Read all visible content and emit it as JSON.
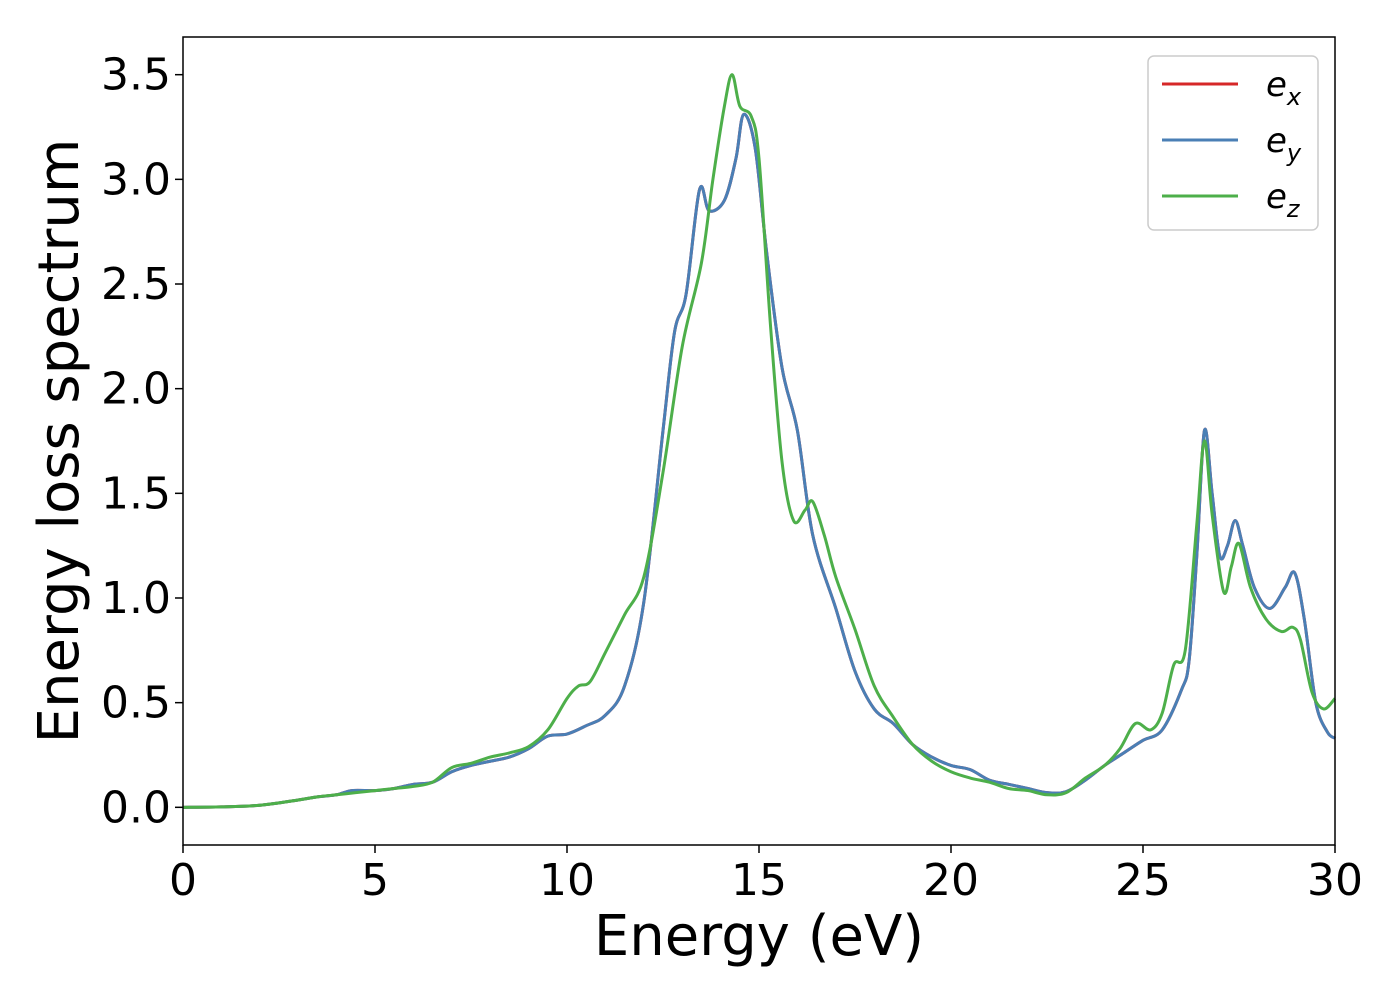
{
  "chart_data": {
    "type": "line",
    "xlabel": "Energy (eV)",
    "ylabel": "Energy loss spectrum",
    "xlim": [
      0,
      30
    ],
    "ylim": [
      -0.18,
      3.68
    ],
    "xticks": [
      0,
      5,
      10,
      15,
      20,
      25,
      30
    ],
    "yticks": [
      0.0,
      0.5,
      1.0,
      1.5,
      2.0,
      2.5,
      3.0,
      3.5
    ],
    "xtick_labels": [
      "0",
      "5",
      "10",
      "15",
      "20",
      "25",
      "30"
    ],
    "ytick_labels": [
      "0.0",
      "0.5",
      "1.0",
      "1.5",
      "2.0",
      "2.5",
      "3.0",
      "3.5"
    ],
    "grid": false,
    "legend_position": "top-right",
    "series": [
      {
        "name": "e",
        "subscript": "x",
        "color": "#d62728",
        "points": [
          [
            0,
            0
          ],
          [
            1,
            0.002
          ],
          [
            2,
            0.01
          ],
          [
            3,
            0.035
          ],
          [
            3.5,
            0.05
          ],
          [
            4,
            0.06
          ],
          [
            4.4,
            0.08
          ],
          [
            5,
            0.08
          ],
          [
            5.5,
            0.09
          ],
          [
            6,
            0.11
          ],
          [
            6.5,
            0.12
          ],
          [
            7,
            0.17
          ],
          [
            7.5,
            0.2
          ],
          [
            8,
            0.22
          ],
          [
            8.5,
            0.24
          ],
          [
            9,
            0.28
          ],
          [
            9.5,
            0.34
          ],
          [
            10,
            0.35
          ],
          [
            10.5,
            0.39
          ],
          [
            11,
            0.44
          ],
          [
            11.5,
            0.58
          ],
          [
            12,
            0.98
          ],
          [
            12.5,
            1.8
          ],
          [
            12.8,
            2.27
          ],
          [
            13.1,
            2.45
          ],
          [
            13.45,
            2.95
          ],
          [
            13.7,
            2.85
          ],
          [
            14.1,
            2.9
          ],
          [
            14.4,
            3.1
          ],
          [
            14.6,
            3.31
          ],
          [
            14.9,
            3.15
          ],
          [
            15.2,
            2.65
          ],
          [
            15.6,
            2.1
          ],
          [
            16,
            1.8
          ],
          [
            16.4,
            1.3
          ],
          [
            17,
            0.95
          ],
          [
            17.5,
            0.65
          ],
          [
            18,
            0.47
          ],
          [
            18.5,
            0.4
          ],
          [
            19,
            0.3
          ],
          [
            19.5,
            0.24
          ],
          [
            20,
            0.2
          ],
          [
            20.5,
            0.18
          ],
          [
            21,
            0.13
          ],
          [
            21.5,
            0.11
          ],
          [
            22,
            0.09
          ],
          [
            22.5,
            0.07
          ],
          [
            23,
            0.075
          ],
          [
            23.5,
            0.13
          ],
          [
            24,
            0.2
          ],
          [
            24.5,
            0.26
          ],
          [
            25,
            0.32
          ],
          [
            25.5,
            0.37
          ],
          [
            26,
            0.56
          ],
          [
            26.2,
            0.7
          ],
          [
            26.4,
            1.2
          ],
          [
            26.6,
            1.8
          ],
          [
            26.8,
            1.5
          ],
          [
            27,
            1.2
          ],
          [
            27.2,
            1.25
          ],
          [
            27.4,
            1.37
          ],
          [
            27.6,
            1.25
          ],
          [
            27.9,
            1.05
          ],
          [
            28.3,
            0.95
          ],
          [
            28.7,
            1.05
          ],
          [
            28.95,
            1.12
          ],
          [
            29.2,
            0.9
          ],
          [
            29.5,
            0.5
          ],
          [
            29.8,
            0.36
          ],
          [
            30,
            0.33
          ]
        ]
      },
      {
        "name": "e",
        "subscript": "y",
        "color": "#4a7fb5",
        "points": [
          [
            0,
            0
          ],
          [
            1,
            0.002
          ],
          [
            2,
            0.01
          ],
          [
            3,
            0.035
          ],
          [
            3.5,
            0.05
          ],
          [
            4,
            0.06
          ],
          [
            4.4,
            0.08
          ],
          [
            5,
            0.08
          ],
          [
            5.5,
            0.09
          ],
          [
            6,
            0.11
          ],
          [
            6.5,
            0.12
          ],
          [
            7,
            0.17
          ],
          [
            7.5,
            0.2
          ],
          [
            8,
            0.22
          ],
          [
            8.5,
            0.24
          ],
          [
            9,
            0.28
          ],
          [
            9.5,
            0.34
          ],
          [
            10,
            0.35
          ],
          [
            10.5,
            0.39
          ],
          [
            11,
            0.44
          ],
          [
            11.5,
            0.58
          ],
          [
            12,
            0.98
          ],
          [
            12.5,
            1.8
          ],
          [
            12.8,
            2.27
          ],
          [
            13.1,
            2.45
          ],
          [
            13.45,
            2.95
          ],
          [
            13.7,
            2.85
          ],
          [
            14.1,
            2.9
          ],
          [
            14.4,
            3.1
          ],
          [
            14.6,
            3.31
          ],
          [
            14.9,
            3.15
          ],
          [
            15.2,
            2.65
          ],
          [
            15.6,
            2.1
          ],
          [
            16,
            1.8
          ],
          [
            16.4,
            1.3
          ],
          [
            17,
            0.95
          ],
          [
            17.5,
            0.65
          ],
          [
            18,
            0.47
          ],
          [
            18.5,
            0.4
          ],
          [
            19,
            0.3
          ],
          [
            19.5,
            0.24
          ],
          [
            20,
            0.2
          ],
          [
            20.5,
            0.18
          ],
          [
            21,
            0.13
          ],
          [
            21.5,
            0.11
          ],
          [
            22,
            0.09
          ],
          [
            22.5,
            0.07
          ],
          [
            23,
            0.075
          ],
          [
            23.5,
            0.13
          ],
          [
            24,
            0.2
          ],
          [
            24.5,
            0.26
          ],
          [
            25,
            0.32
          ],
          [
            25.5,
            0.37
          ],
          [
            26,
            0.56
          ],
          [
            26.2,
            0.7
          ],
          [
            26.4,
            1.2
          ],
          [
            26.6,
            1.8
          ],
          [
            26.8,
            1.5
          ],
          [
            27,
            1.2
          ],
          [
            27.2,
            1.25
          ],
          [
            27.4,
            1.37
          ],
          [
            27.6,
            1.25
          ],
          [
            27.9,
            1.05
          ],
          [
            28.3,
            0.95
          ],
          [
            28.7,
            1.05
          ],
          [
            28.95,
            1.12
          ],
          [
            29.2,
            0.9
          ],
          [
            29.5,
            0.5
          ],
          [
            29.8,
            0.36
          ],
          [
            30,
            0.33
          ]
        ]
      },
      {
        "name": "e",
        "subscript": "z",
        "color": "#4daf4a",
        "points": [
          [
            0,
            0
          ],
          [
            1,
            0.002
          ],
          [
            2,
            0.01
          ],
          [
            3,
            0.035
          ],
          [
            3.5,
            0.05
          ],
          [
            4,
            0.06
          ],
          [
            4.5,
            0.07
          ],
          [
            5,
            0.08
          ],
          [
            5.5,
            0.09
          ],
          [
            6,
            0.1
          ],
          [
            6.5,
            0.12
          ],
          [
            7,
            0.19
          ],
          [
            7.5,
            0.21
          ],
          [
            8,
            0.24
          ],
          [
            8.5,
            0.26
          ],
          [
            9,
            0.29
          ],
          [
            9.5,
            0.37
          ],
          [
            10,
            0.52
          ],
          [
            10.3,
            0.58
          ],
          [
            10.6,
            0.6
          ],
          [
            11,
            0.74
          ],
          [
            11.5,
            0.92
          ],
          [
            12,
            1.1
          ],
          [
            12.5,
            1.6
          ],
          [
            13,
            2.2
          ],
          [
            13.5,
            2.6
          ],
          [
            13.8,
            3.0
          ],
          [
            14.1,
            3.35
          ],
          [
            14.3,
            3.5
          ],
          [
            14.5,
            3.35
          ],
          [
            14.8,
            3.3
          ],
          [
            15,
            3.1
          ],
          [
            15.3,
            2.3
          ],
          [
            15.6,
            1.65
          ],
          [
            15.9,
            1.37
          ],
          [
            16.2,
            1.42
          ],
          [
            16.4,
            1.46
          ],
          [
            16.7,
            1.3
          ],
          [
            17,
            1.1
          ],
          [
            17.5,
            0.85
          ],
          [
            18,
            0.58
          ],
          [
            18.5,
            0.43
          ],
          [
            19,
            0.3
          ],
          [
            19.5,
            0.22
          ],
          [
            20,
            0.17
          ],
          [
            20.5,
            0.14
          ],
          [
            21,
            0.12
          ],
          [
            21.5,
            0.09
          ],
          [
            22,
            0.08
          ],
          [
            22.5,
            0.06
          ],
          [
            23,
            0.07
          ],
          [
            23.5,
            0.14
          ],
          [
            24,
            0.2
          ],
          [
            24.4,
            0.28
          ],
          [
            24.8,
            0.4
          ],
          [
            25.2,
            0.37
          ],
          [
            25.5,
            0.45
          ],
          [
            25.8,
            0.68
          ],
          [
            26.1,
            0.75
          ],
          [
            26.4,
            1.35
          ],
          [
            26.6,
            1.75
          ],
          [
            26.8,
            1.4
          ],
          [
            27.1,
            1.03
          ],
          [
            27.3,
            1.15
          ],
          [
            27.5,
            1.26
          ],
          [
            27.8,
            1.05
          ],
          [
            28.2,
            0.9
          ],
          [
            28.6,
            0.84
          ],
          [
            28.9,
            0.86
          ],
          [
            29.1,
            0.8
          ],
          [
            29.4,
            0.55
          ],
          [
            29.7,
            0.47
          ],
          [
            30,
            0.52
          ]
        ]
      }
    ]
  }
}
